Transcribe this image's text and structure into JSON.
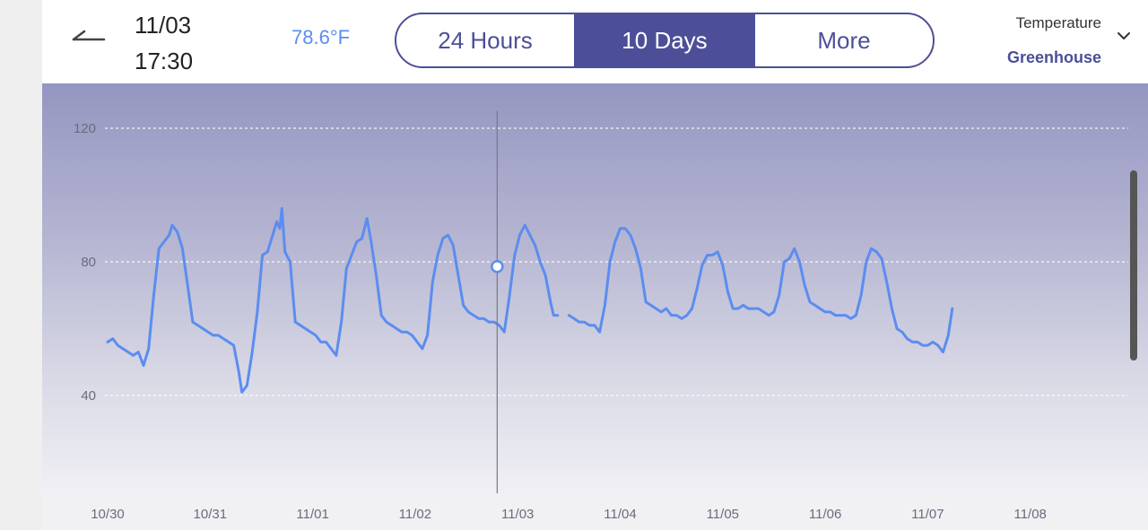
{
  "header": {
    "back_icon": "back-arrow-icon",
    "date": "11/03",
    "time": "17:30",
    "current_value": "78.6°F",
    "tabs": [
      {
        "label": "24 Hours",
        "active": false
      },
      {
        "label": "10 Days",
        "active": true
      },
      {
        "label": "More",
        "active": false
      }
    ],
    "selector": {
      "metric": "Temperature",
      "location": "Greenhouse",
      "icon": "chevron-down-icon"
    }
  },
  "colors": {
    "accent": "#4c4f98",
    "line": "#5b8def",
    "value": "#5b8def"
  },
  "chart_data": {
    "type": "line",
    "title": "Temperature - Greenhouse (10 Days)",
    "xlabel": "",
    "ylabel": "",
    "categories": [
      "10/30",
      "10/31",
      "11/01",
      "11/02",
      "11/03",
      "11/04",
      "11/05",
      "11/06",
      "11/07",
      "11/08"
    ],
    "ylim": [
      14,
      126
    ],
    "yticks": [
      40,
      80,
      120
    ],
    "grid": true,
    "selected": {
      "x": 3.8,
      "y": 78.6,
      "label": "11/03 17:30"
    },
    "series": [
      {
        "name": "Temperature (°F)",
        "segments": [
          [
            [
              0.0,
              56
            ],
            [
              0.05,
              57
            ],
            [
              0.1,
              55
            ],
            [
              0.15,
              54
            ],
            [
              0.2,
              53
            ],
            [
              0.25,
              52
            ],
            [
              0.3,
              53
            ],
            [
              0.35,
              49
            ],
            [
              0.4,
              54
            ],
            [
              0.45,
              70
            ],
            [
              0.5,
              84
            ],
            [
              0.55,
              86
            ],
            [
              0.6,
              88
            ],
            [
              0.63,
              91
            ],
            [
              0.68,
              89
            ],
            [
              0.73,
              84
            ],
            [
              0.78,
              73
            ],
            [
              0.83,
              62
            ],
            [
              0.88,
              61
            ],
            [
              0.93,
              60
            ],
            [
              0.98,
              59
            ],
            [
              1.03,
              58
            ],
            [
              1.08,
              58
            ],
            [
              1.13,
              57
            ],
            [
              1.18,
              56
            ],
            [
              1.23,
              55
            ],
            [
              1.28,
              47
            ],
            [
              1.31,
              41
            ],
            [
              1.36,
              43
            ],
            [
              1.41,
              53
            ],
            [
              1.46,
              65
            ],
            [
              1.51,
              82
            ],
            [
              1.56,
              83
            ],
            [
              1.61,
              88
            ],
            [
              1.65,
              92
            ],
            [
              1.68,
              90
            ],
            [
              1.7,
              96
            ],
            [
              1.73,
              83
            ],
            [
              1.78,
              80
            ],
            [
              1.83,
              62
            ],
            [
              1.88,
              61
            ],
            [
              1.93,
              60
            ],
            [
              1.98,
              59
            ],
            [
              2.03,
              58
            ],
            [
              2.08,
              56
            ],
            [
              2.13,
              56
            ],
            [
              2.18,
              54
            ],
            [
              2.23,
              52
            ],
            [
              2.28,
              62
            ],
            [
              2.33,
              78
            ],
            [
              2.38,
              82
            ],
            [
              2.43,
              86
            ],
            [
              2.48,
              87
            ],
            [
              2.53,
              93
            ],
            [
              2.57,
              86
            ],
            [
              2.62,
              76
            ],
            [
              2.67,
              64
            ],
            [
              2.72,
              62
            ],
            [
              2.77,
              61
            ],
            [
              2.82,
              60
            ],
            [
              2.87,
              59
            ],
            [
              2.92,
              59
            ],
            [
              2.97,
              58
            ],
            [
              3.02,
              56
            ],
            [
              3.07,
              54
            ],
            [
              3.12,
              58
            ],
            [
              3.17,
              74
            ],
            [
              3.22,
              82
            ],
            [
              3.27,
              87
            ],
            [
              3.32,
              88
            ],
            [
              3.37,
              85
            ],
            [
              3.42,
              76
            ],
            [
              3.47,
              67
            ],
            [
              3.52,
              65
            ],
            [
              3.57,
              64
            ],
            [
              3.62,
              63
            ],
            [
              3.67,
              63
            ],
            [
              3.72,
              62
            ],
            [
              3.77,
              62
            ],
            [
              3.82,
              61
            ],
            [
              3.87,
              59
            ],
            [
              3.92,
              70
            ],
            [
              3.97,
              82
            ],
            [
              4.02,
              88
            ],
            [
              4.07,
              91
            ],
            [
              4.12,
              88
            ],
            [
              4.17,
              85
            ],
            [
              4.22,
              80
            ],
            [
              4.27,
              76
            ],
            [
              4.32,
              68
            ],
            [
              4.35,
              64
            ],
            [
              4.39,
              64
            ]
          ],
          [
            [
              4.5,
              64
            ],
            [
              4.55,
              63
            ],
            [
              4.6,
              62
            ],
            [
              4.65,
              62
            ],
            [
              4.7,
              61
            ],
            [
              4.75,
              61
            ],
            [
              4.8,
              59
            ],
            [
              4.85,
              67
            ],
            [
              4.9,
              80
            ],
            [
              4.95,
              86
            ],
            [
              5.0,
              90
            ],
            [
              5.05,
              90
            ],
            [
              5.1,
              88
            ],
            [
              5.15,
              84
            ],
            [
              5.2,
              78
            ],
            [
              5.25,
              68
            ],
            [
              5.3,
              67
            ],
            [
              5.35,
              66
            ],
            [
              5.4,
              65
            ],
            [
              5.45,
              66
            ],
            [
              5.5,
              64
            ],
            [
              5.55,
              64
            ],
            [
              5.6,
              63
            ],
            [
              5.65,
              64
            ],
            [
              5.7,
              66
            ],
            [
              5.75,
              72
            ],
            [
              5.8,
              79
            ],
            [
              5.85,
              82
            ],
            [
              5.9,
              82
            ],
            [
              5.95,
              83
            ],
            [
              6.0,
              79
            ],
            [
              6.05,
              71
            ],
            [
              6.1,
              66
            ],
            [
              6.15,
              66
            ],
            [
              6.2,
              67
            ],
            [
              6.25,
              66
            ],
            [
              6.3,
              66
            ],
            [
              6.35,
              66
            ],
            [
              6.4,
              65
            ],
            [
              6.45,
              64
            ],
            [
              6.5,
              65
            ],
            [
              6.55,
              70
            ],
            [
              6.6,
              80
            ],
            [
              6.65,
              81
            ],
            [
              6.7,
              84
            ],
            [
              6.75,
              80
            ],
            [
              6.8,
              73
            ],
            [
              6.85,
              68
            ],
            [
              6.9,
              67
            ],
            [
              6.95,
              66
            ],
            [
              7.0,
              65
            ],
            [
              7.05,
              65
            ],
            [
              7.1,
              64
            ],
            [
              7.15,
              64
            ],
            [
              7.2,
              64
            ],
            [
              7.25,
              63
            ],
            [
              7.3,
              64
            ],
            [
              7.35,
              70
            ],
            [
              7.4,
              80
            ],
            [
              7.45,
              84
            ],
            [
              7.5,
              83
            ],
            [
              7.55,
              81
            ],
            [
              7.6,
              74
            ],
            [
              7.65,
              66
            ],
            [
              7.7,
              60
            ],
            [
              7.75,
              59
            ],
            [
              7.8,
              57
            ],
            [
              7.85,
              56
            ],
            [
              7.9,
              56
            ],
            [
              7.95,
              55
            ],
            [
              8.0,
              55
            ],
            [
              8.05,
              56
            ],
            [
              8.1,
              55
            ],
            [
              8.15,
              53
            ],
            [
              8.2,
              58
            ],
            [
              8.24,
              66
            ]
          ]
        ]
      }
    ]
  }
}
